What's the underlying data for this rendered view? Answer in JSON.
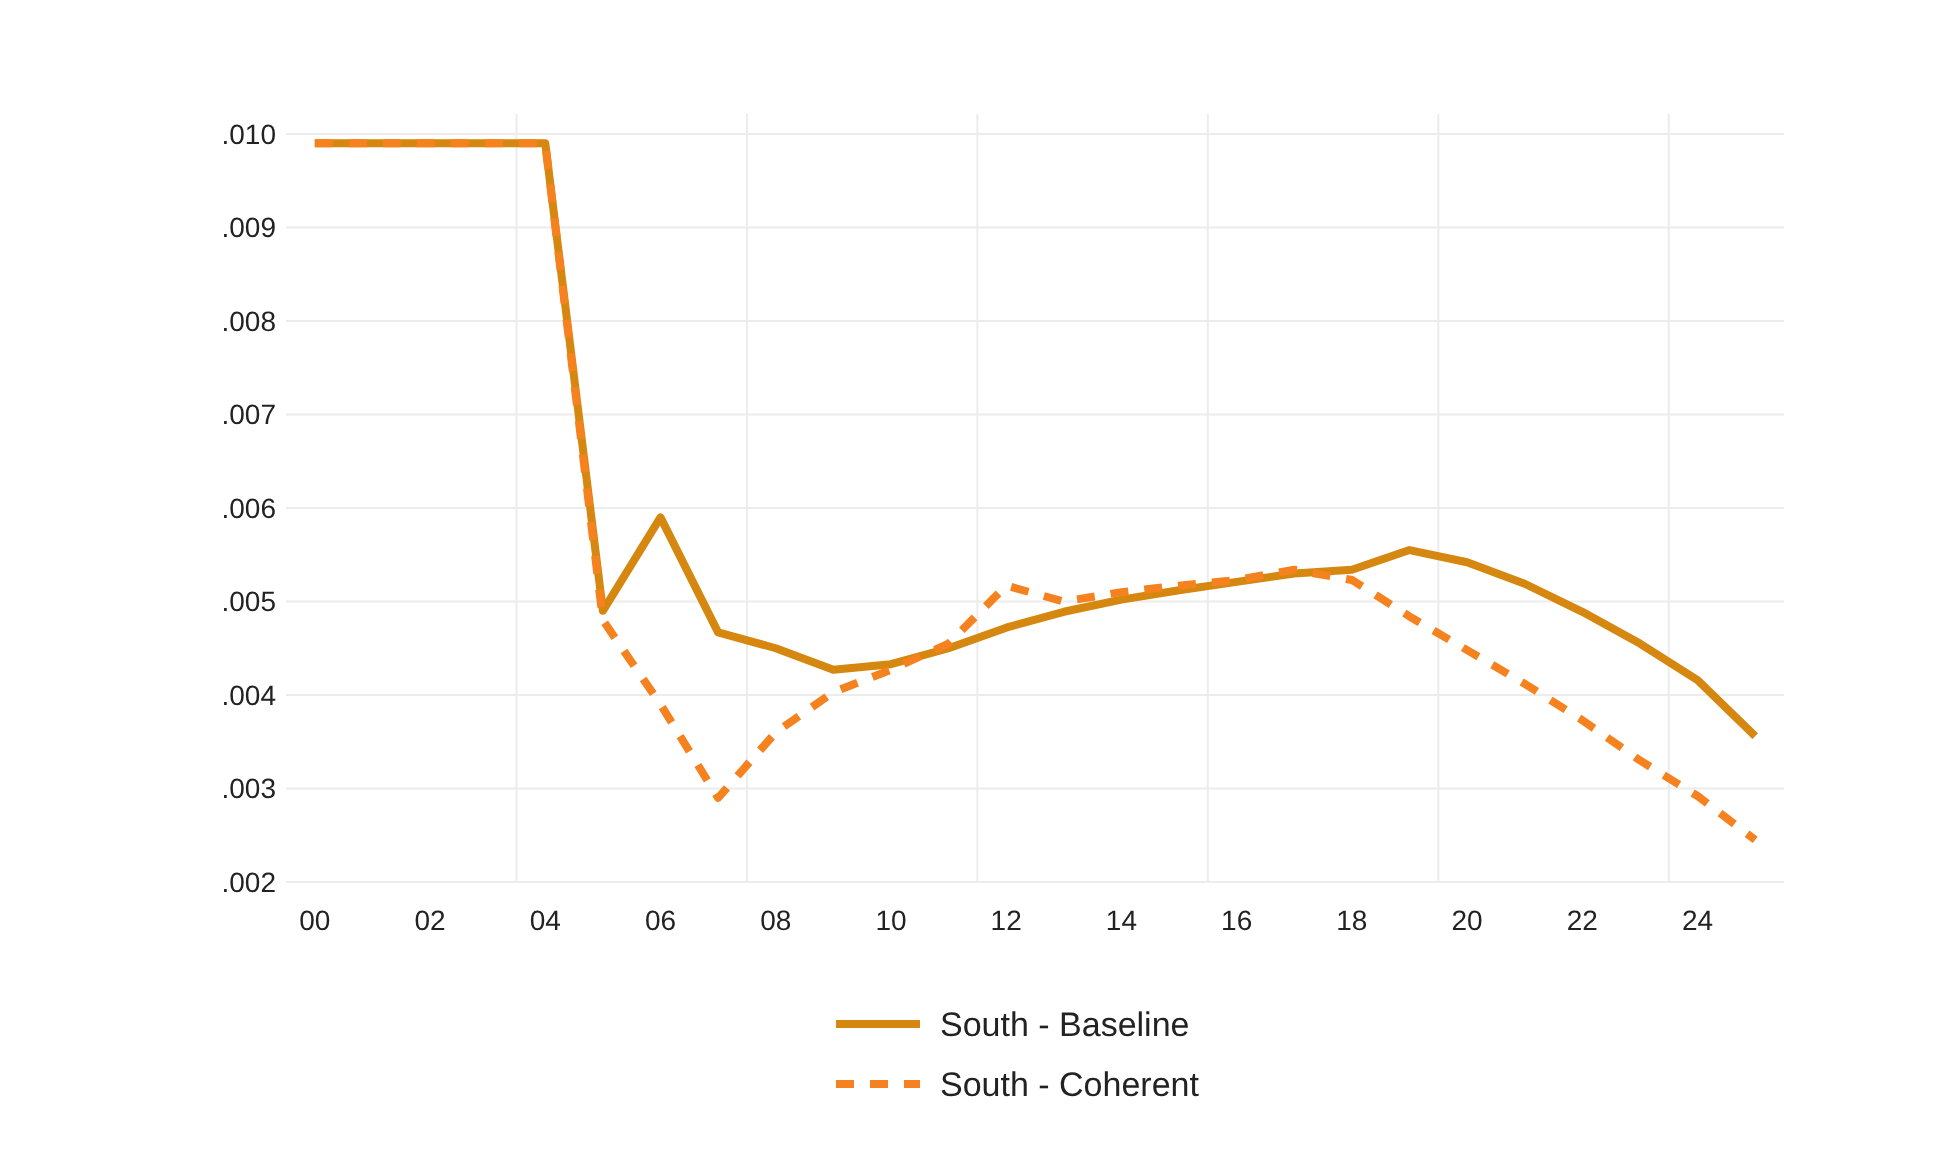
{
  "chart_data": {
    "type": "line",
    "categories": [
      "00",
      null,
      "02",
      null,
      "04",
      null,
      "06",
      null,
      "08",
      null,
      "10",
      null,
      "12",
      null,
      "14",
      null,
      "16",
      null,
      "18",
      null,
      "20",
      null,
      "22",
      null,
      "24",
      null
    ],
    "ylim": [
      0.002,
      0.01
    ],
    "yticks": [
      {
        "value": 0.002,
        "label": ".002"
      },
      {
        "value": 0.003,
        "label": ".003"
      },
      {
        "value": 0.004,
        "label": ".004"
      },
      {
        "value": 0.005,
        "label": ".005"
      },
      {
        "value": 0.006,
        "label": ".006"
      },
      {
        "value": 0.007,
        "label": ".007"
      },
      {
        "value": 0.008,
        "label": ".008"
      },
      {
        "value": 0.009,
        "label": ".009"
      },
      {
        "value": 0.01,
        "label": ".010"
      }
    ],
    "grid": true,
    "legend": "bottom",
    "series": [
      {
        "name": "South - Baseline",
        "color": "#d5870f",
        "line_style": "solid",
        "values": [
          0.0099,
          0.0099,
          0.0099,
          0.0099,
          0.0099,
          0.0049,
          0.0059,
          0.00467,
          0.0045,
          0.00427,
          0.00433,
          0.0045,
          0.00472,
          0.00489,
          0.00502,
          0.00512,
          0.00521,
          0.0053,
          0.00534,
          0.00555,
          0.00542,
          0.00519,
          0.00489,
          0.00455,
          0.00416,
          0.00356
        ]
      },
      {
        "name": "South - Coherent",
        "color": "#f5821f",
        "line_style": "dashed",
        "values": [
          0.0099,
          0.0099,
          0.0099,
          0.0099,
          0.0099,
          0.0048,
          0.0039,
          0.0029,
          0.0036,
          0.00403,
          0.00427,
          0.00455,
          0.00517,
          0.005,
          0.0051,
          0.00517,
          0.00523,
          0.00534,
          0.00523,
          0.00484,
          0.00448,
          0.00412,
          0.00373,
          0.0033,
          0.00292,
          0.00245
        ]
      }
    ]
  }
}
